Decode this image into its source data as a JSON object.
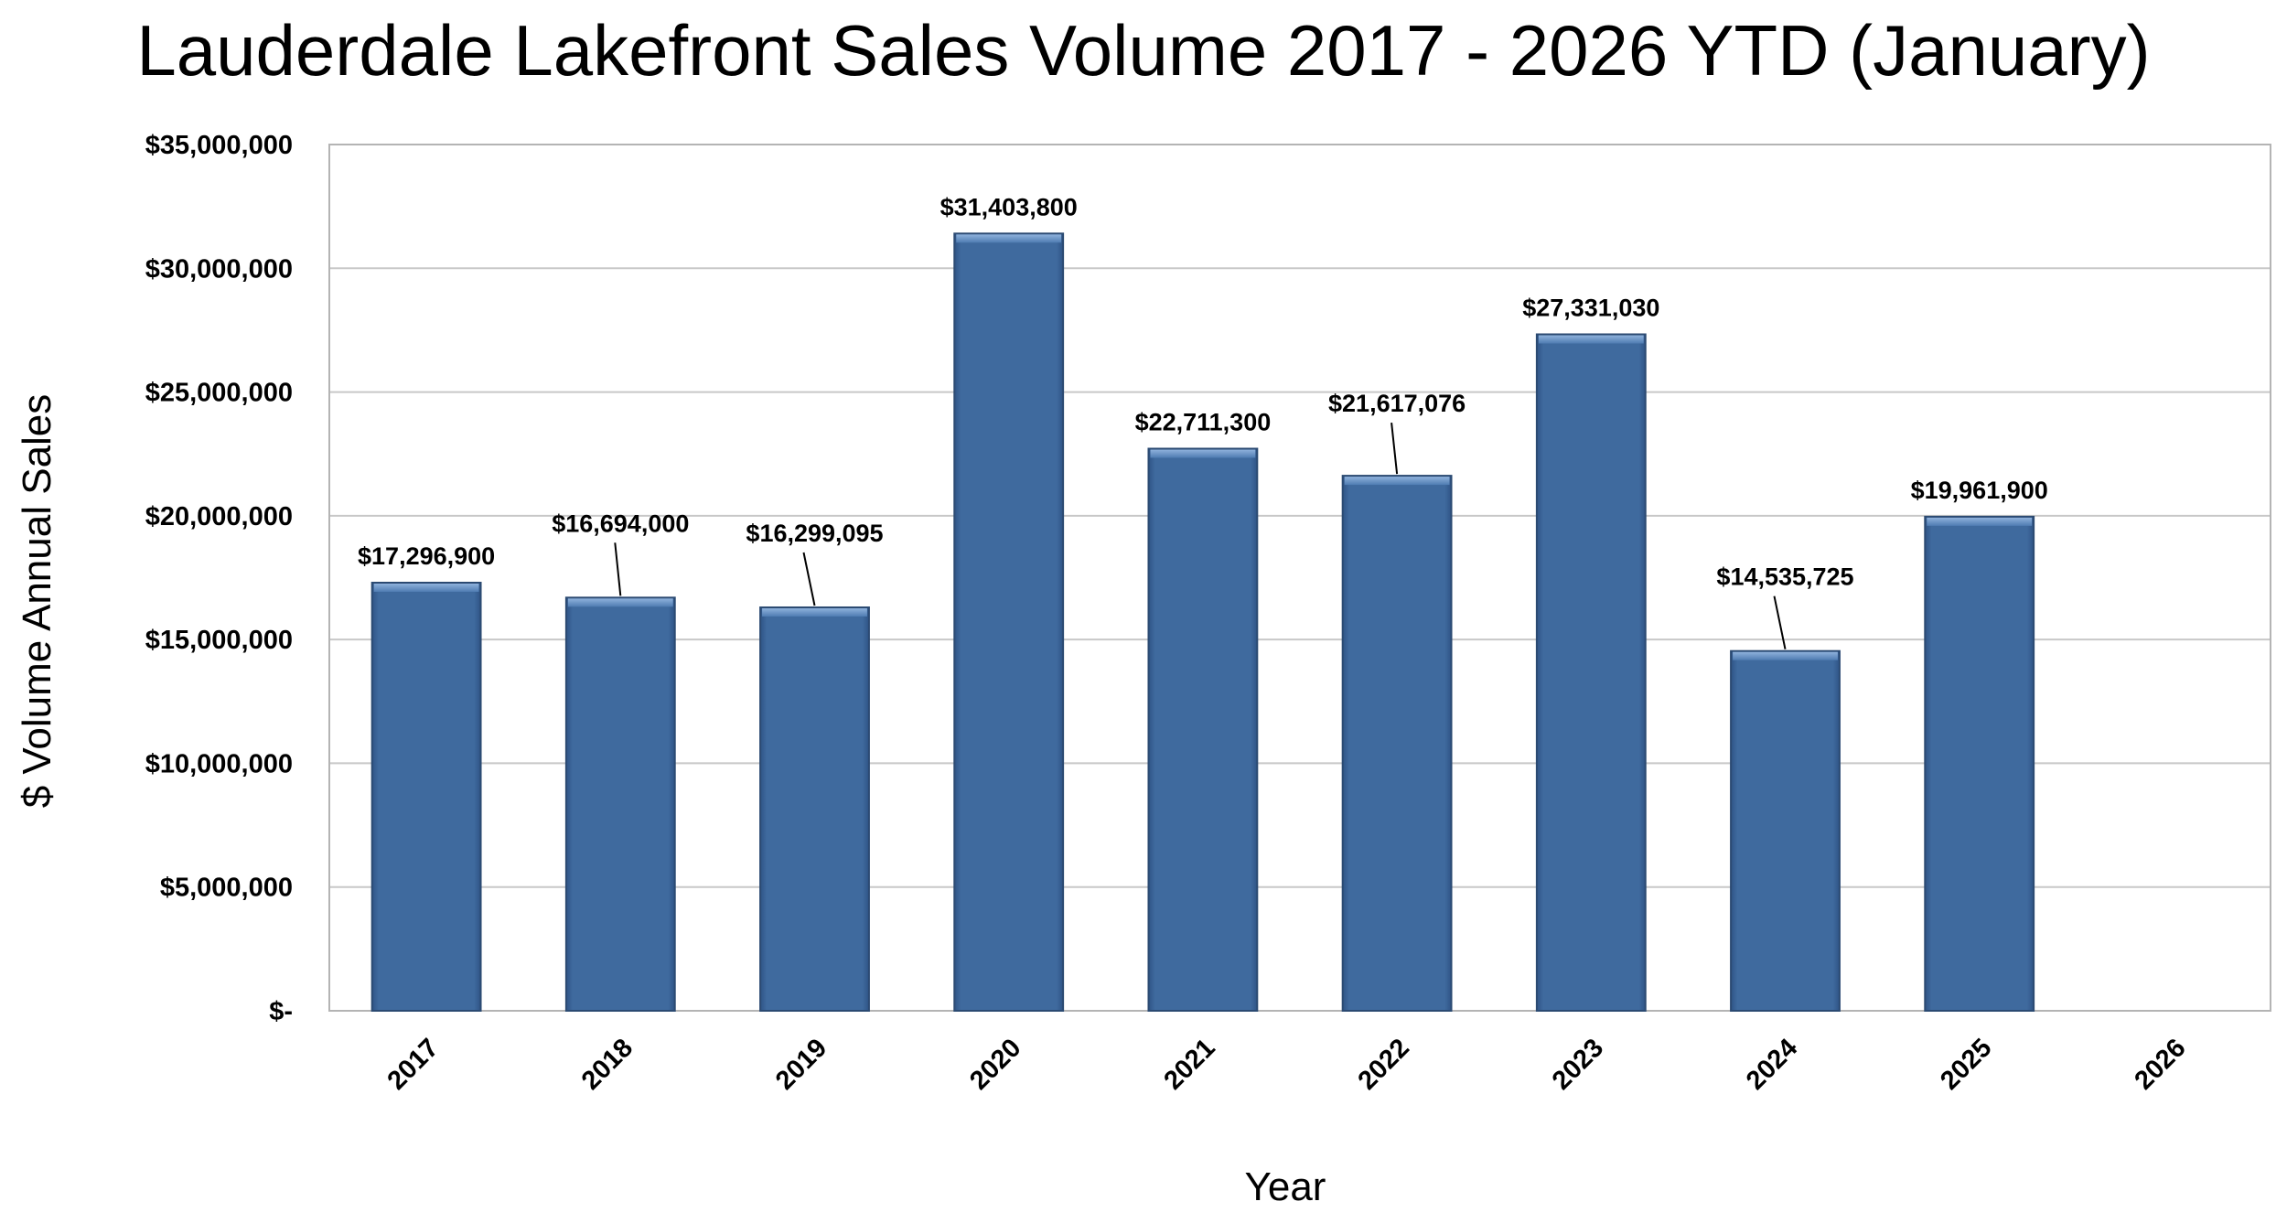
{
  "chart_data": {
    "type": "bar",
    "title": "Lauderdale Lakefront Sales Volume 2017 - 2026 YTD (January)",
    "xlabel": "Year",
    "ylabel": "$ Volume Annual Sales",
    "categories": [
      "2017",
      "2018",
      "2019",
      "2020",
      "2021",
      "2022",
      "2023",
      "2024",
      "2025",
      "2026"
    ],
    "values": [
      17296900,
      16694000,
      16299095,
      31403800,
      22711300,
      21617076,
      27331030,
      14535725,
      19961900,
      null
    ],
    "data_labels": [
      "$17,296,900",
      "$16,694,000",
      "$16,299,095",
      "$31,403,800",
      "$22,711,300",
      "$21,617,076",
      "$27,331,030",
      "$14,535,725",
      "$19,961,900",
      ""
    ],
    "ylim": [
      0,
      35000000
    ],
    "yticks": [
      0,
      5000000,
      10000000,
      15000000,
      20000000,
      25000000,
      30000000,
      35000000
    ],
    "ytick_labels": [
      "$-",
      "$5,000,000",
      "$10,000,000",
      "$15,000,000",
      "$20,000,000",
      "$25,000,000",
      "$30,000,000",
      "$35,000,000"
    ],
    "grid": true,
    "legend": "none",
    "bar_color": "#3f6a9e",
    "bar_edge_color": "#2b4a72",
    "bar_highlight_color": "#6f97c8"
  }
}
